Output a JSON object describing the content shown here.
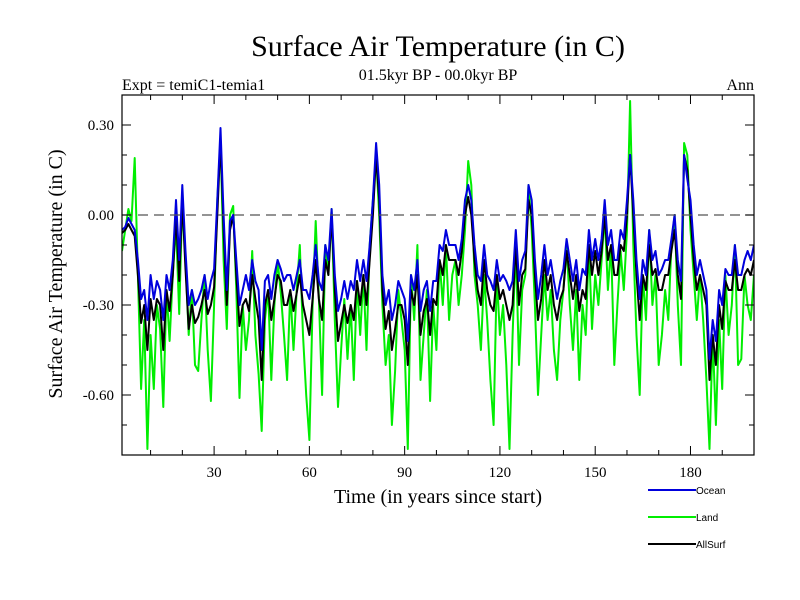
{
  "chart_data": {
    "type": "line",
    "title": "Surface Air Temperature (in C)",
    "subtitle_left": "Expt = temiC1-temia1",
    "subtitle_center": "01.5kyr BP - 00.0kyr BP",
    "subtitle_right": "Ann",
    "xlabel": "Time (in years since start)",
    "ylabel": "Surface Air Temperature (in C)",
    "xlim": [
      1,
      200
    ],
    "ylim": [
      -0.8,
      0.4
    ],
    "x_ticks": [
      30,
      60,
      90,
      120,
      150,
      180
    ],
    "x_tick_labels": [
      "30",
      "60",
      "90",
      "120",
      "150",
      "180"
    ],
    "y_ticks": [
      0.3,
      0.0,
      -0.3,
      -0.6
    ],
    "y_tick_labels": [
      "0.30",
      "0.00",
      "-0.30",
      "-0.60"
    ],
    "reference_line": 0.0,
    "series": [
      {
        "name": "Land",
        "color": "#00ee00",
        "values": [
          -0.12,
          -0.05,
          0.02,
          -0.02,
          0.19,
          -0.2,
          -0.58,
          -0.35,
          -0.78,
          -0.4,
          -0.58,
          -0.3,
          -0.38,
          -0.64,
          -0.25,
          -0.42,
          -0.2,
          -0.03,
          -0.33,
          0.05,
          -0.15,
          -0.4,
          -0.25,
          -0.5,
          -0.52,
          -0.35,
          -0.2,
          -0.45,
          -0.62,
          -0.3,
          0.05,
          0.25,
          -0.15,
          -0.38,
          0.0,
          0.03,
          -0.25,
          -0.61,
          -0.3,
          -0.45,
          -0.35,
          -0.12,
          -0.4,
          -0.53,
          -0.72,
          -0.35,
          -0.25,
          -0.55,
          -0.3,
          -0.15,
          -0.26,
          -0.4,
          -0.55,
          -0.25,
          -0.45,
          -0.25,
          -0.1,
          -0.4,
          -0.6,
          -0.75,
          -0.3,
          -0.02,
          -0.28,
          -0.6,
          -0.1,
          -0.2,
          0.02,
          -0.35,
          -0.64,
          -0.45,
          -0.28,
          -0.48,
          -0.3,
          -0.55,
          -0.22,
          -0.4,
          -0.2,
          -0.45,
          -0.1,
          0.05,
          0.2,
          0.0,
          -0.3,
          -0.5,
          -0.4,
          -0.7,
          -0.52,
          -0.25,
          -0.35,
          -0.45,
          -0.78,
          -0.2,
          -0.35,
          -0.1,
          -0.55,
          -0.4,
          -0.25,
          -0.62,
          -0.3,
          -0.45,
          -0.15,
          -0.3,
          -0.1,
          -0.35,
          -0.2,
          -0.15,
          -0.3,
          -0.2,
          -0.05,
          0.18,
          0.1,
          -0.2,
          -0.3,
          -0.45,
          -0.2,
          -0.35,
          -0.55,
          -0.7,
          -0.2,
          -0.4,
          -0.3,
          -0.5,
          -0.78,
          -0.4,
          -0.1,
          -0.5,
          -0.25,
          -0.2,
          0.1,
          -0.05,
          -0.3,
          -0.6,
          -0.4,
          -0.2,
          -0.35,
          -0.25,
          -0.45,
          -0.55,
          -0.35,
          -0.25,
          -0.1,
          -0.3,
          -0.45,
          -0.25,
          -0.55,
          -0.3,
          -0.4,
          -0.1,
          -0.38,
          -0.2,
          -0.3,
          -0.15,
          0.0,
          -0.25,
          -0.1,
          -0.5,
          -0.3,
          -0.12,
          -0.25,
          -0.05,
          0.38,
          -0.1,
          -0.4,
          -0.6,
          -0.2,
          -0.35,
          -0.05,
          -0.3,
          -0.2,
          -0.5,
          -0.4,
          -0.25,
          -0.35,
          -0.1,
          0.0,
          -0.3,
          -0.5,
          0.24,
          0.2,
          -0.05,
          -0.2,
          -0.35,
          -0.2,
          -0.35,
          -0.55,
          -0.78,
          -0.4,
          -0.7,
          -0.35,
          -0.58,
          -0.2,
          -0.4,
          -0.3,
          -0.1,
          -0.5,
          -0.48,
          -0.2,
          -0.3,
          -0.35,
          -0.2
        ],
        "dash": "solid"
      },
      {
        "name": "AllSurf",
        "color": "#000000",
        "values": [
          -0.06,
          -0.05,
          -0.03,
          -0.05,
          -0.07,
          -0.2,
          -0.36,
          -0.3,
          -0.45,
          -0.28,
          -0.35,
          -0.28,
          -0.3,
          -0.45,
          -0.25,
          -0.32,
          -0.2,
          0.0,
          -0.22,
          0.05,
          -0.18,
          -0.38,
          -0.3,
          -0.36,
          -0.34,
          -0.3,
          -0.25,
          -0.33,
          -0.3,
          -0.24,
          0.0,
          0.25,
          -0.05,
          -0.3,
          -0.05,
          0.0,
          -0.2,
          -0.37,
          -0.3,
          -0.28,
          -0.32,
          -0.2,
          -0.28,
          -0.35,
          -0.55,
          -0.3,
          -0.25,
          -0.35,
          -0.28,
          -0.2,
          -0.22,
          -0.3,
          -0.3,
          -0.25,
          -0.32,
          -0.26,
          -0.2,
          -0.3,
          -0.35,
          -0.4,
          -0.28,
          -0.15,
          -0.28,
          -0.35,
          -0.15,
          -0.2,
          0.0,
          -0.25,
          -0.42,
          -0.36,
          -0.3,
          -0.36,
          -0.3,
          -0.35,
          -0.22,
          -0.3,
          -0.2,
          -0.3,
          -0.15,
          0.0,
          0.2,
          0.05,
          -0.25,
          -0.38,
          -0.32,
          -0.45,
          -0.38,
          -0.3,
          -0.3,
          -0.35,
          -0.5,
          -0.25,
          -0.3,
          -0.2,
          -0.4,
          -0.32,
          -0.28,
          -0.4,
          -0.28,
          -0.3,
          -0.15,
          -0.2,
          -0.1,
          -0.15,
          -0.15,
          -0.15,
          -0.2,
          -0.12,
          0.0,
          0.06,
          0.0,
          -0.15,
          -0.25,
          -0.3,
          -0.15,
          -0.25,
          -0.3,
          -0.32,
          -0.2,
          -0.28,
          -0.25,
          -0.3,
          -0.35,
          -0.3,
          -0.1,
          -0.3,
          -0.2,
          -0.18,
          0.05,
          0.0,
          -0.2,
          -0.35,
          -0.28,
          -0.15,
          -0.25,
          -0.2,
          -0.3,
          -0.35,
          -0.28,
          -0.25,
          -0.12,
          -0.2,
          -0.28,
          -0.2,
          -0.32,
          -0.25,
          -0.28,
          -0.1,
          -0.2,
          -0.12,
          -0.2,
          -0.12,
          0.0,
          -0.15,
          -0.1,
          -0.2,
          -0.2,
          -0.1,
          -0.12,
          0.0,
          0.2,
          0.0,
          -0.2,
          -0.35,
          -0.2,
          -0.25,
          -0.1,
          -0.2,
          -0.18,
          -0.25,
          -0.25,
          -0.2,
          -0.2,
          -0.12,
          -0.05,
          -0.2,
          -0.28,
          0.2,
          0.15,
          0.0,
          -0.15,
          -0.25,
          -0.2,
          -0.25,
          -0.3,
          -0.55,
          -0.4,
          -0.5,
          -0.3,
          -0.38,
          -0.22,
          -0.25,
          -0.25,
          -0.15,
          -0.25,
          -0.25,
          -0.2,
          -0.18,
          -0.2,
          -0.15
        ],
        "dash": "solid"
      },
      {
        "name": "Ocean",
        "color": "#0000dd",
        "values": [
          -0.05,
          -0.04,
          -0.01,
          -0.03,
          -0.05,
          -0.15,
          -0.28,
          -0.25,
          -0.35,
          -0.2,
          -0.28,
          -0.22,
          -0.25,
          -0.35,
          -0.2,
          -0.25,
          -0.15,
          0.05,
          -0.15,
          0.1,
          -0.12,
          -0.3,
          -0.25,
          -0.3,
          -0.28,
          -0.25,
          -0.2,
          -0.28,
          -0.22,
          -0.18,
          0.05,
          0.29,
          0.0,
          -0.25,
          -0.02,
          0.0,
          -0.15,
          -0.3,
          -0.25,
          -0.2,
          -0.25,
          -0.15,
          -0.22,
          -0.25,
          -0.45,
          -0.22,
          -0.2,
          -0.28,
          -0.2,
          -0.15,
          -0.18,
          -0.22,
          -0.2,
          -0.2,
          -0.25,
          -0.2,
          -0.15,
          -0.25,
          -0.25,
          -0.28,
          -0.2,
          -0.1,
          -0.22,
          -0.25,
          -0.1,
          -0.15,
          0.02,
          -0.2,
          -0.32,
          -0.28,
          -0.22,
          -0.28,
          -0.22,
          -0.25,
          -0.15,
          -0.22,
          -0.15,
          -0.22,
          -0.1,
          0.05,
          0.24,
          0.1,
          -0.2,
          -0.3,
          -0.25,
          -0.35,
          -0.3,
          -0.22,
          -0.25,
          -0.28,
          -0.42,
          -0.2,
          -0.25,
          -0.15,
          -0.32,
          -0.25,
          -0.22,
          -0.32,
          -0.22,
          -0.22,
          -0.1,
          -0.12,
          -0.05,
          -0.1,
          -0.1,
          -0.1,
          -0.15,
          -0.08,
          0.05,
          0.1,
          0.05,
          -0.1,
          -0.2,
          -0.22,
          -0.1,
          -0.2,
          -0.22,
          -0.25,
          -0.15,
          -0.22,
          -0.2,
          -0.22,
          -0.25,
          -0.22,
          -0.05,
          -0.22,
          -0.15,
          -0.12,
          0.1,
          0.05,
          -0.15,
          -0.28,
          -0.2,
          -0.1,
          -0.2,
          -0.15,
          -0.22,
          -0.28,
          -0.22,
          -0.18,
          -0.08,
          -0.15,
          -0.22,
          -0.15,
          -0.25,
          -0.18,
          -0.2,
          -0.05,
          -0.15,
          -0.08,
          -0.15,
          -0.08,
          0.05,
          -0.1,
          -0.05,
          -0.15,
          -0.15,
          -0.05,
          -0.08,
          0.05,
          0.2,
          0.05,
          -0.15,
          -0.28,
          -0.15,
          -0.2,
          -0.05,
          -0.15,
          -0.12,
          -0.2,
          -0.18,
          -0.15,
          -0.15,
          -0.08,
          0.0,
          -0.15,
          -0.22,
          0.2,
          0.12,
          0.05,
          -0.1,
          -0.2,
          -0.15,
          -0.2,
          -0.25,
          -0.48,
          -0.35,
          -0.42,
          -0.25,
          -0.3,
          -0.18,
          -0.2,
          -0.2,
          -0.1,
          -0.2,
          -0.2,
          -0.15,
          -0.12,
          -0.15,
          -0.1
        ],
        "dash": "solid"
      }
    ],
    "legend": [
      {
        "name": "Ocean",
        "color": "#0000dd"
      },
      {
        "name": "Land",
        "color": "#00ee00"
      },
      {
        "name": "AllSurf",
        "color": "#000000"
      }
    ],
    "legend_position": "bottom-right"
  }
}
